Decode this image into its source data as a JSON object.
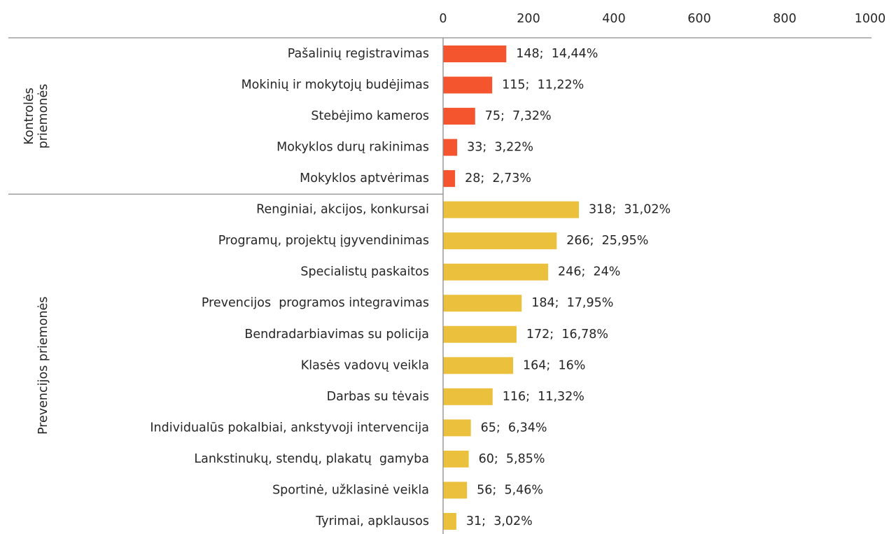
{
  "chart_data": {
    "type": "bar",
    "orientation": "horizontal",
    "xlim": [
      0,
      1000
    ],
    "xticks": [
      0,
      200,
      400,
      600,
      800,
      1000
    ],
    "groups": [
      {
        "name_lines": [
          "Kontrolės",
          "priemonės"
        ],
        "color": "#f4552f",
        "categories": [
          "Pašalinių registravimas",
          "Mokinių ir mokytojų budėjimas",
          "Stebėjimo kameros",
          "Mokyklos durų rakinimas",
          "Mokyklos aptvėrimas"
        ],
        "values": [
          148,
          115,
          75,
          33,
          28
        ],
        "value_labels": [
          "148;  14,44%",
          "115;  11,22%",
          "75;  7,32%",
          "33;  3,22%",
          "28;  2,73%"
        ]
      },
      {
        "name_lines": [
          "Prevencijos priemonės"
        ],
        "color": "#ebc03c",
        "categories": [
          "Renginiai, akcijos, konkursai",
          "Programų, projektų įgyvendinimas",
          "Specialistų paskaitos",
          "Prevencijos  programos integravimas",
          "Bendradarbiavimas su policija",
          "Klasės vadovų veikla",
          "Darbas su tėvais",
          "Individualūs pokalbiai, ankstyvoji intervencija",
          "Lankstinukų, stendų, plakatų  gamyba",
          "Sportinė, užklasinė veikla",
          "Tyrimai, apklausos"
        ],
        "values": [
          318,
          266,
          246,
          184,
          172,
          164,
          116,
          65,
          60,
          56,
          31
        ],
        "value_labels": [
          "318;  31,02%",
          "266;  25,95%",
          "246;  24%",
          "184;  17,95%",
          "172;  16,78%",
          "164;  16%",
          "116;  11,32%",
          "65;  6,34%",
          "60;  5,85%",
          "56;  5,46%",
          "31;  3,02%"
        ]
      }
    ]
  }
}
